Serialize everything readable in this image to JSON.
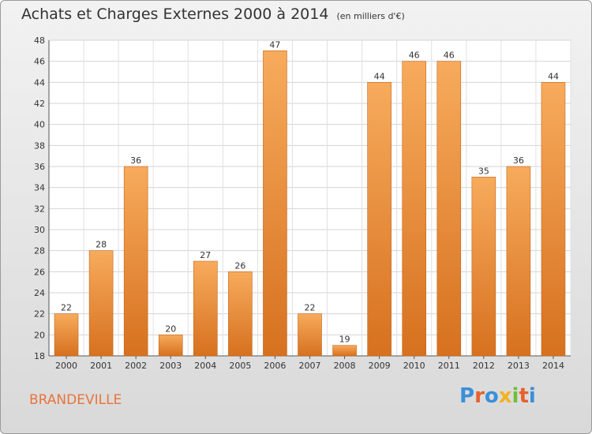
{
  "chart_data": {
    "type": "bar",
    "title": "Achats et Charges Externes 2000 à 2014",
    "unit": "(en milliers d'€)",
    "categories": [
      "2000",
      "2001",
      "2002",
      "2003",
      "2004",
      "2005",
      "2006",
      "2007",
      "2008",
      "2009",
      "2010",
      "2011",
      "2012",
      "2013",
      "2014"
    ],
    "values": [
      22,
      28,
      36,
      20,
      27,
      26,
      47,
      22,
      19,
      44,
      46,
      46,
      35,
      36,
      44
    ],
    "ylim": [
      18,
      48
    ],
    "yticks": [
      18,
      20,
      22,
      24,
      26,
      28,
      30,
      32,
      34,
      36,
      38,
      40,
      42,
      44,
      46,
      48
    ],
    "xlabel": "",
    "ylabel": "",
    "grid": true,
    "colors": {
      "bar_light": "#f5a556",
      "bar_dark": "#d9731f",
      "bar_border": "#c4661c"
    }
  },
  "footer": {
    "commune": "BRANDEVILLE",
    "logo_letters": [
      "P",
      "r",
      "o",
      "x",
      "i",
      "t",
      "i"
    ],
    "logo_colors": [
      "#3a8fd8",
      "#e8602c",
      "#3a8fd8",
      "#f2b221",
      "#6fbf3a",
      "#e8602c",
      "#3a8fd8"
    ]
  }
}
